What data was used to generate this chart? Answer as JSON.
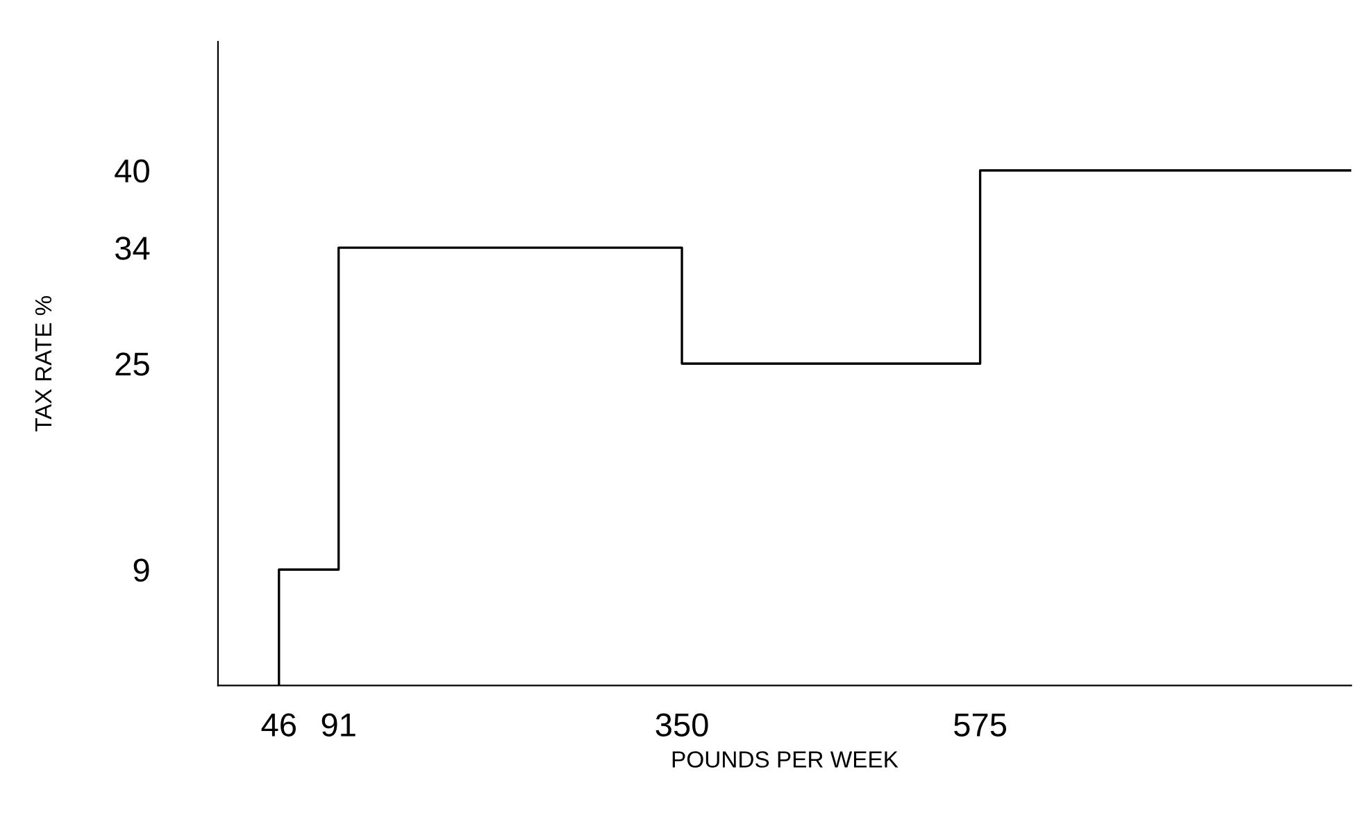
{
  "chart_data": {
    "type": "step",
    "xlabel": "POUNDS PER WEEK",
    "ylabel": "TAX RATE %",
    "x": [
      46,
      46,
      91,
      350,
      575,
      855
    ],
    "series": [
      {
        "color": "#000000",
        "values": [
          0,
          9,
          34,
          25,
          40,
          40
        ]
      }
    ],
    "xlim": [
      0,
      855
    ],
    "ylim": [
      0,
      50
    ],
    "xticks": [
      46,
      91,
      350,
      575
    ],
    "yticks": [
      9,
      25,
      34,
      40
    ],
    "grid": false,
    "legend": false,
    "marker": "none",
    "line_style": "solid"
  }
}
